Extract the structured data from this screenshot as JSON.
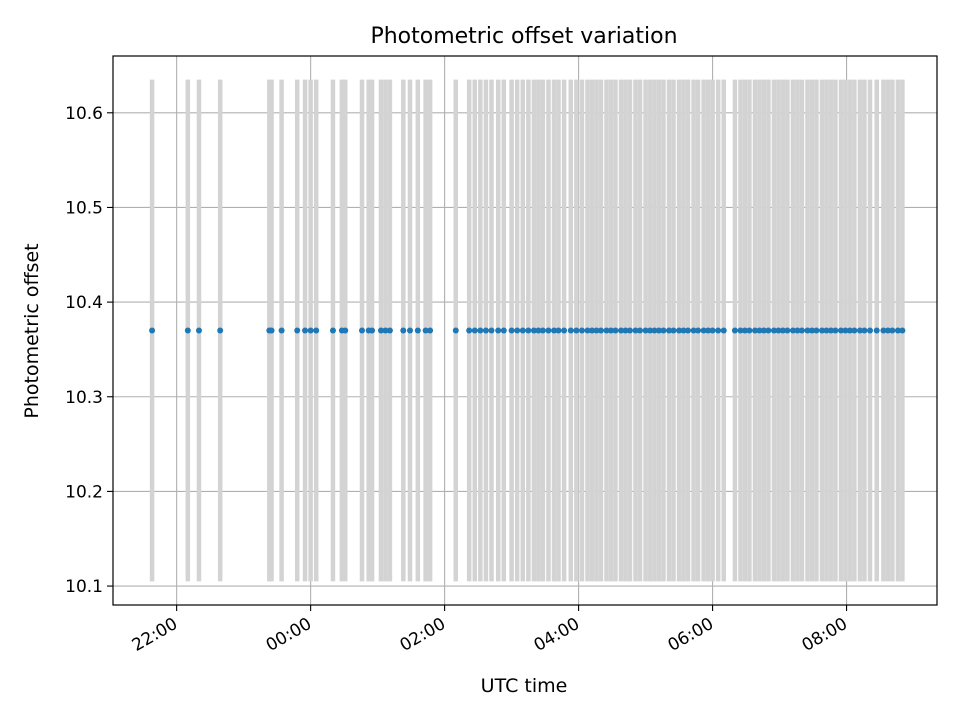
{
  "chart_data": {
    "type": "scatter",
    "title": "Photometric offset variation",
    "xlabel": "UTC time",
    "ylabel": "Photometric offset",
    "x_axis_kind": "time",
    "xlim": [
      "21:03",
      "09:21"
    ],
    "ylim": [
      10.08,
      10.66
    ],
    "grid": true,
    "x_ticks": [
      "22:00",
      "00:00",
      "02:00",
      "04:00",
      "06:00",
      "08:00"
    ],
    "y_ticks": [
      "10.1",
      "10.2",
      "10.3",
      "10.4",
      "10.5",
      "10.6"
    ],
    "colors": {
      "points": "#1f77b4",
      "error_bars": "#d3d3d3",
      "grid": "#b0b0b0",
      "axes": "#000000"
    },
    "series": [
      {
        "error_low": 10.105,
        "error_high": 10.635,
        "points": [
          {
            "x": "21:38",
            "y": 10.37
          },
          {
            "x": "22:10",
            "y": 10.37
          },
          {
            "x": "22:20",
            "y": 10.37
          },
          {
            "x": "22:39",
            "y": 10.37
          },
          {
            "x": "23:23",
            "y": 10.37
          },
          {
            "x": "23:25",
            "y": 10.37
          },
          {
            "x": "23:34",
            "y": 10.37
          },
          {
            "x": "23:48",
            "y": 10.37
          },
          {
            "x": "23:55",
            "y": 10.37
          },
          {
            "x": "00:00",
            "y": 10.37
          },
          {
            "x": "00:05",
            "y": 10.37
          },
          {
            "x": "00:20",
            "y": 10.37
          },
          {
            "x": "00:28",
            "y": 10.37
          },
          {
            "x": "00:31",
            "y": 10.37
          },
          {
            "x": "00:46",
            "y": 10.37
          },
          {
            "x": "00:52",
            "y": 10.37
          },
          {
            "x": "00:55",
            "y": 10.37
          },
          {
            "x": "01:03",
            "y": 10.37
          },
          {
            "x": "01:07",
            "y": 10.37
          },
          {
            "x": "01:11",
            "y": 10.37
          },
          {
            "x": "01:23",
            "y": 10.37
          },
          {
            "x": "01:29",
            "y": 10.37
          },
          {
            "x": "01:36",
            "y": 10.37
          },
          {
            "x": "01:43",
            "y": 10.37
          },
          {
            "x": "01:47",
            "y": 10.37
          },
          {
            "x": "02:10",
            "y": 10.37
          },
          {
            "x": "02:22",
            "y": 10.37
          },
          {
            "x": "02:27",
            "y": 10.37
          },
          {
            "x": "02:32",
            "y": 10.37
          },
          {
            "x": "02:37",
            "y": 10.37
          },
          {
            "x": "02:42",
            "y": 10.37
          },
          {
            "x": "02:48",
            "y": 10.37
          },
          {
            "x": "02:53",
            "y": 10.37
          },
          {
            "x": "03:00",
            "y": 10.37
          },
          {
            "x": "03:05",
            "y": 10.37
          },
          {
            "x": "03:10",
            "y": 10.37
          },
          {
            "x": "03:15",
            "y": 10.37
          },
          {
            "x": "03:20",
            "y": 10.37
          },
          {
            "x": "03:24",
            "y": 10.37
          },
          {
            "x": "03:28",
            "y": 10.37
          },
          {
            "x": "03:33",
            "y": 10.37
          },
          {
            "x": "03:38",
            "y": 10.37
          },
          {
            "x": "03:42",
            "y": 10.37
          },
          {
            "x": "03:47",
            "y": 10.37
          },
          {
            "x": "03:53",
            "y": 10.37
          },
          {
            "x": "03:58",
            "y": 10.37
          },
          {
            "x": "04:03",
            "y": 10.37
          },
          {
            "x": "04:08",
            "y": 10.37
          },
          {
            "x": "04:12",
            "y": 10.37
          },
          {
            "x": "04:16",
            "y": 10.37
          },
          {
            "x": "04:20",
            "y": 10.37
          },
          {
            "x": "04:25",
            "y": 10.37
          },
          {
            "x": "04:29",
            "y": 10.37
          },
          {
            "x": "04:33",
            "y": 10.37
          },
          {
            "x": "04:38",
            "y": 10.37
          },
          {
            "x": "04:42",
            "y": 10.37
          },
          {
            "x": "04:46",
            "y": 10.37
          },
          {
            "x": "04:51",
            "y": 10.37
          },
          {
            "x": "04:55",
            "y": 10.37
          },
          {
            "x": "05:00",
            "y": 10.37
          },
          {
            "x": "05:04",
            "y": 10.37
          },
          {
            "x": "05:08",
            "y": 10.37
          },
          {
            "x": "05:12",
            "y": 10.37
          },
          {
            "x": "05:16",
            "y": 10.37
          },
          {
            "x": "05:21",
            "y": 10.37
          },
          {
            "x": "05:25",
            "y": 10.37
          },
          {
            "x": "05:30",
            "y": 10.37
          },
          {
            "x": "05:34",
            "y": 10.37
          },
          {
            "x": "05:38",
            "y": 10.37
          },
          {
            "x": "05:43",
            "y": 10.37
          },
          {
            "x": "05:47",
            "y": 10.37
          },
          {
            "x": "05:52",
            "y": 10.37
          },
          {
            "x": "05:56",
            "y": 10.37
          },
          {
            "x": "06:00",
            "y": 10.37
          },
          {
            "x": "06:05",
            "y": 10.37
          },
          {
            "x": "06:10",
            "y": 10.37
          },
          {
            "x": "06:20",
            "y": 10.37
          },
          {
            "x": "06:25",
            "y": 10.37
          },
          {
            "x": "06:29",
            "y": 10.37
          },
          {
            "x": "06:33",
            "y": 10.37
          },
          {
            "x": "06:38",
            "y": 10.37
          },
          {
            "x": "06:42",
            "y": 10.37
          },
          {
            "x": "06:46",
            "y": 10.37
          },
          {
            "x": "06:50",
            "y": 10.37
          },
          {
            "x": "06:55",
            "y": 10.37
          },
          {
            "x": "06:59",
            "y": 10.37
          },
          {
            "x": "07:03",
            "y": 10.37
          },
          {
            "x": "07:07",
            "y": 10.37
          },
          {
            "x": "07:12",
            "y": 10.37
          },
          {
            "x": "07:16",
            "y": 10.37
          },
          {
            "x": "07:20",
            "y": 10.37
          },
          {
            "x": "07:25",
            "y": 10.37
          },
          {
            "x": "07:29",
            "y": 10.37
          },
          {
            "x": "07:33",
            "y": 10.37
          },
          {
            "x": "07:38",
            "y": 10.37
          },
          {
            "x": "07:42",
            "y": 10.37
          },
          {
            "x": "07:46",
            "y": 10.37
          },
          {
            "x": "07:50",
            "y": 10.37
          },
          {
            "x": "07:55",
            "y": 10.37
          },
          {
            "x": "07:59",
            "y": 10.37
          },
          {
            "x": "08:03",
            "y": 10.37
          },
          {
            "x": "08:07",
            "y": 10.37
          },
          {
            "x": "08:12",
            "y": 10.37
          },
          {
            "x": "08:16",
            "y": 10.37
          },
          {
            "x": "08:21",
            "y": 10.37
          },
          {
            "x": "08:27",
            "y": 10.37
          },
          {
            "x": "08:33",
            "y": 10.37
          },
          {
            "x": "08:37",
            "y": 10.37
          },
          {
            "x": "08:41",
            "y": 10.37
          },
          {
            "x": "08:46",
            "y": 10.37
          },
          {
            "x": "08:50",
            "y": 10.37
          }
        ]
      }
    ]
  }
}
